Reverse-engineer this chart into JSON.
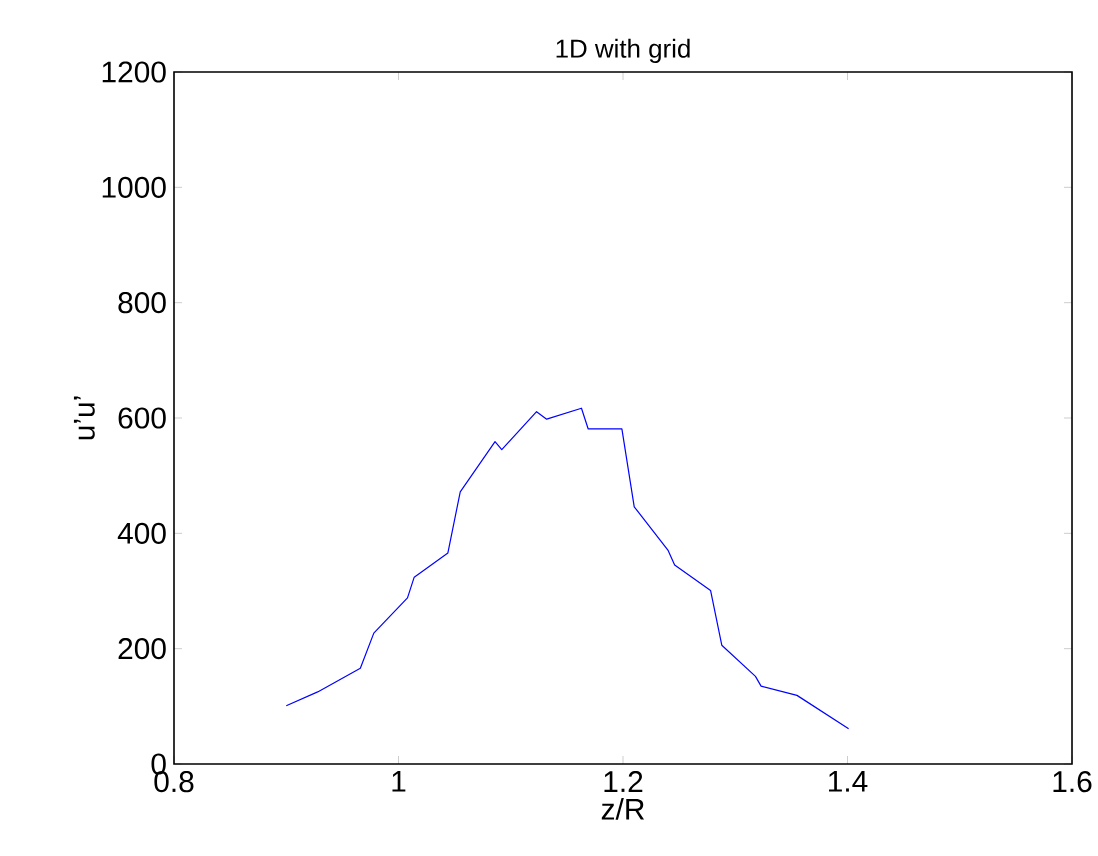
{
  "chart_data": {
    "type": "line",
    "title": "1D with grid",
    "xlabel": "z/R",
    "ylabel": "u’u’",
    "x": [
      0.9,
      0.928,
      0.966,
      0.978,
      1.008,
      1.014,
      1.044,
      1.055,
      1.086,
      1.092,
      1.123,
      1.132,
      1.163,
      1.169,
      1.199,
      1.21,
      1.24,
      1.246,
      1.278,
      1.288,
      1.318,
      1.323,
      1.355,
      1.401
    ],
    "series": [
      {
        "color": "#0000ff",
        "values": [
          101,
          125,
          166,
          227,
          288,
          324,
          366,
          472,
          559,
          545,
          611,
          598,
          617,
          581,
          581,
          446,
          371,
          345,
          301,
          206,
          152,
          135,
          119,
          61
        ]
      }
    ],
    "xlim": [
      0.8,
      1.6
    ],
    "ylim": [
      0,
      1200
    ],
    "xticks": [
      0.8,
      1,
      1.2,
      1.4,
      1.6
    ],
    "yticks": [
      0,
      200,
      400,
      600,
      800,
      1000,
      1200
    ],
    "marker": "none",
    "line_style": "solid"
  }
}
